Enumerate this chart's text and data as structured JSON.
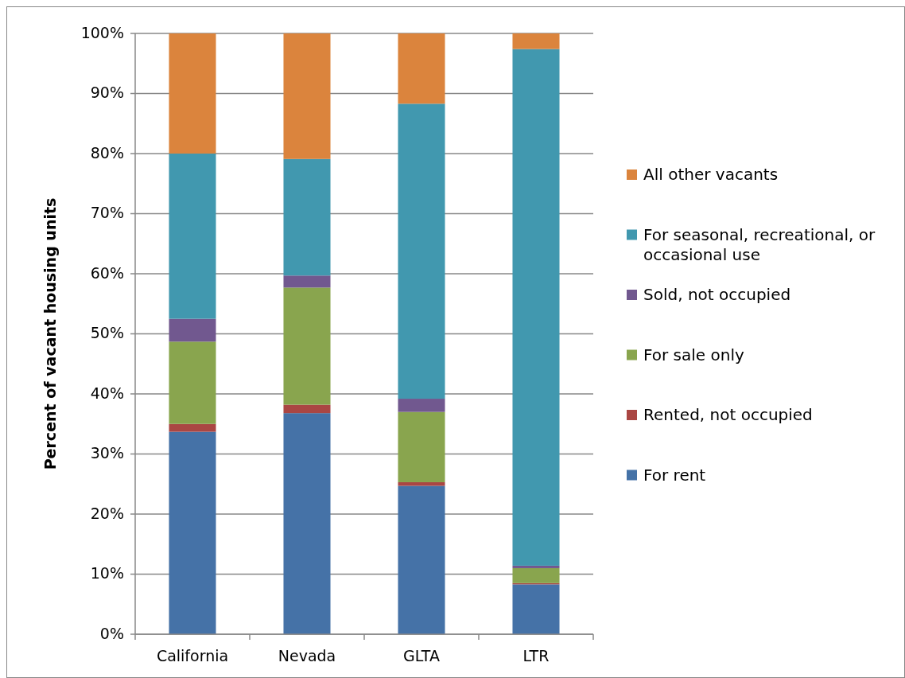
{
  "chart_data": {
    "type": "bar",
    "stacked": true,
    "ylabel": "Percent of vacant housing units",
    "categories": [
      "California",
      "Nevada",
      "GLTA",
      "LTR"
    ],
    "series": [
      {
        "name": "For rent",
        "color": "#4572a7",
        "values": [
          33.7,
          36.8,
          24.7,
          8.3
        ]
      },
      {
        "name": "Rented, not occupied",
        "color": "#aa4643",
        "values": [
          1.3,
          1.4,
          0.6,
          0.2
        ]
      },
      {
        "name": "For sale only",
        "color": "#89a54e",
        "values": [
          13.7,
          19.5,
          11.7,
          2.5
        ]
      },
      {
        "name": "Sold, not occupied",
        "color": "#71588f",
        "values": [
          3.8,
          2.0,
          2.2,
          0.4
        ]
      },
      {
        "name": "For seasonal, recreational, or occasional use",
        "color": "#4198af",
        "values": [
          27.5,
          19.4,
          49.1,
          86.0
        ]
      },
      {
        "name": "All other vacants",
        "color": "#db843d",
        "values": [
          20.0,
          20.9,
          11.7,
          2.6
        ]
      }
    ],
    "ylim": [
      0,
      100
    ],
    "yticks": [
      {
        "value": 0,
        "label": "0%"
      },
      {
        "value": 10,
        "label": "10%"
      },
      {
        "value": 20,
        "label": "20%"
      },
      {
        "value": 30,
        "label": "30%"
      },
      {
        "value": 40,
        "label": "40%"
      },
      {
        "value": 50,
        "label": "50%"
      },
      {
        "value": 60,
        "label": "60%"
      },
      {
        "value": 70,
        "label": "70%"
      },
      {
        "value": 80,
        "label": "80%"
      },
      {
        "value": 90,
        "label": "90%"
      },
      {
        "value": 100,
        "label": "100%"
      }
    ],
    "grid": "y",
    "legend": "right"
  }
}
